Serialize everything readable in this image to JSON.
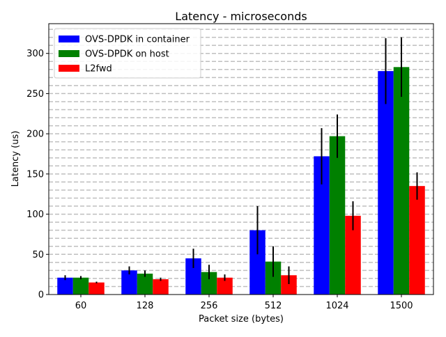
{
  "chart_data": {
    "type": "bar",
    "title": "Latency - microseconds",
    "xlabel": "Packet size (bytes)",
    "ylabel": "Latency (us)",
    "categories": [
      "60",
      "128",
      "256",
      "512",
      "1024",
      "1500"
    ],
    "ylim": [
      0,
      337
    ],
    "yticks": [
      0,
      50,
      100,
      150,
      200,
      250,
      300
    ],
    "grid": "horizontal dashed gridlines every 10",
    "legend_position": "top-left",
    "series": [
      {
        "name": "OVS-DPDK in container",
        "color": "#0000ff",
        "values": [
          21,
          30,
          45,
          80,
          172,
          278
        ],
        "errors": [
          3,
          5,
          12,
          30,
          35,
          41
        ]
      },
      {
        "name": "OVS-DPDK on host",
        "color": "#008000",
        "values": [
          21,
          26,
          28,
          41,
          197,
          283
        ],
        "errors": [
          2,
          4,
          9,
          19,
          27,
          37
        ]
      },
      {
        "name": "L2fwd",
        "color": "#ff0000",
        "values": [
          15,
          19,
          21,
          24,
          98,
          135
        ],
        "errors": [
          1,
          2,
          4,
          11,
          18,
          17
        ]
      }
    ]
  }
}
